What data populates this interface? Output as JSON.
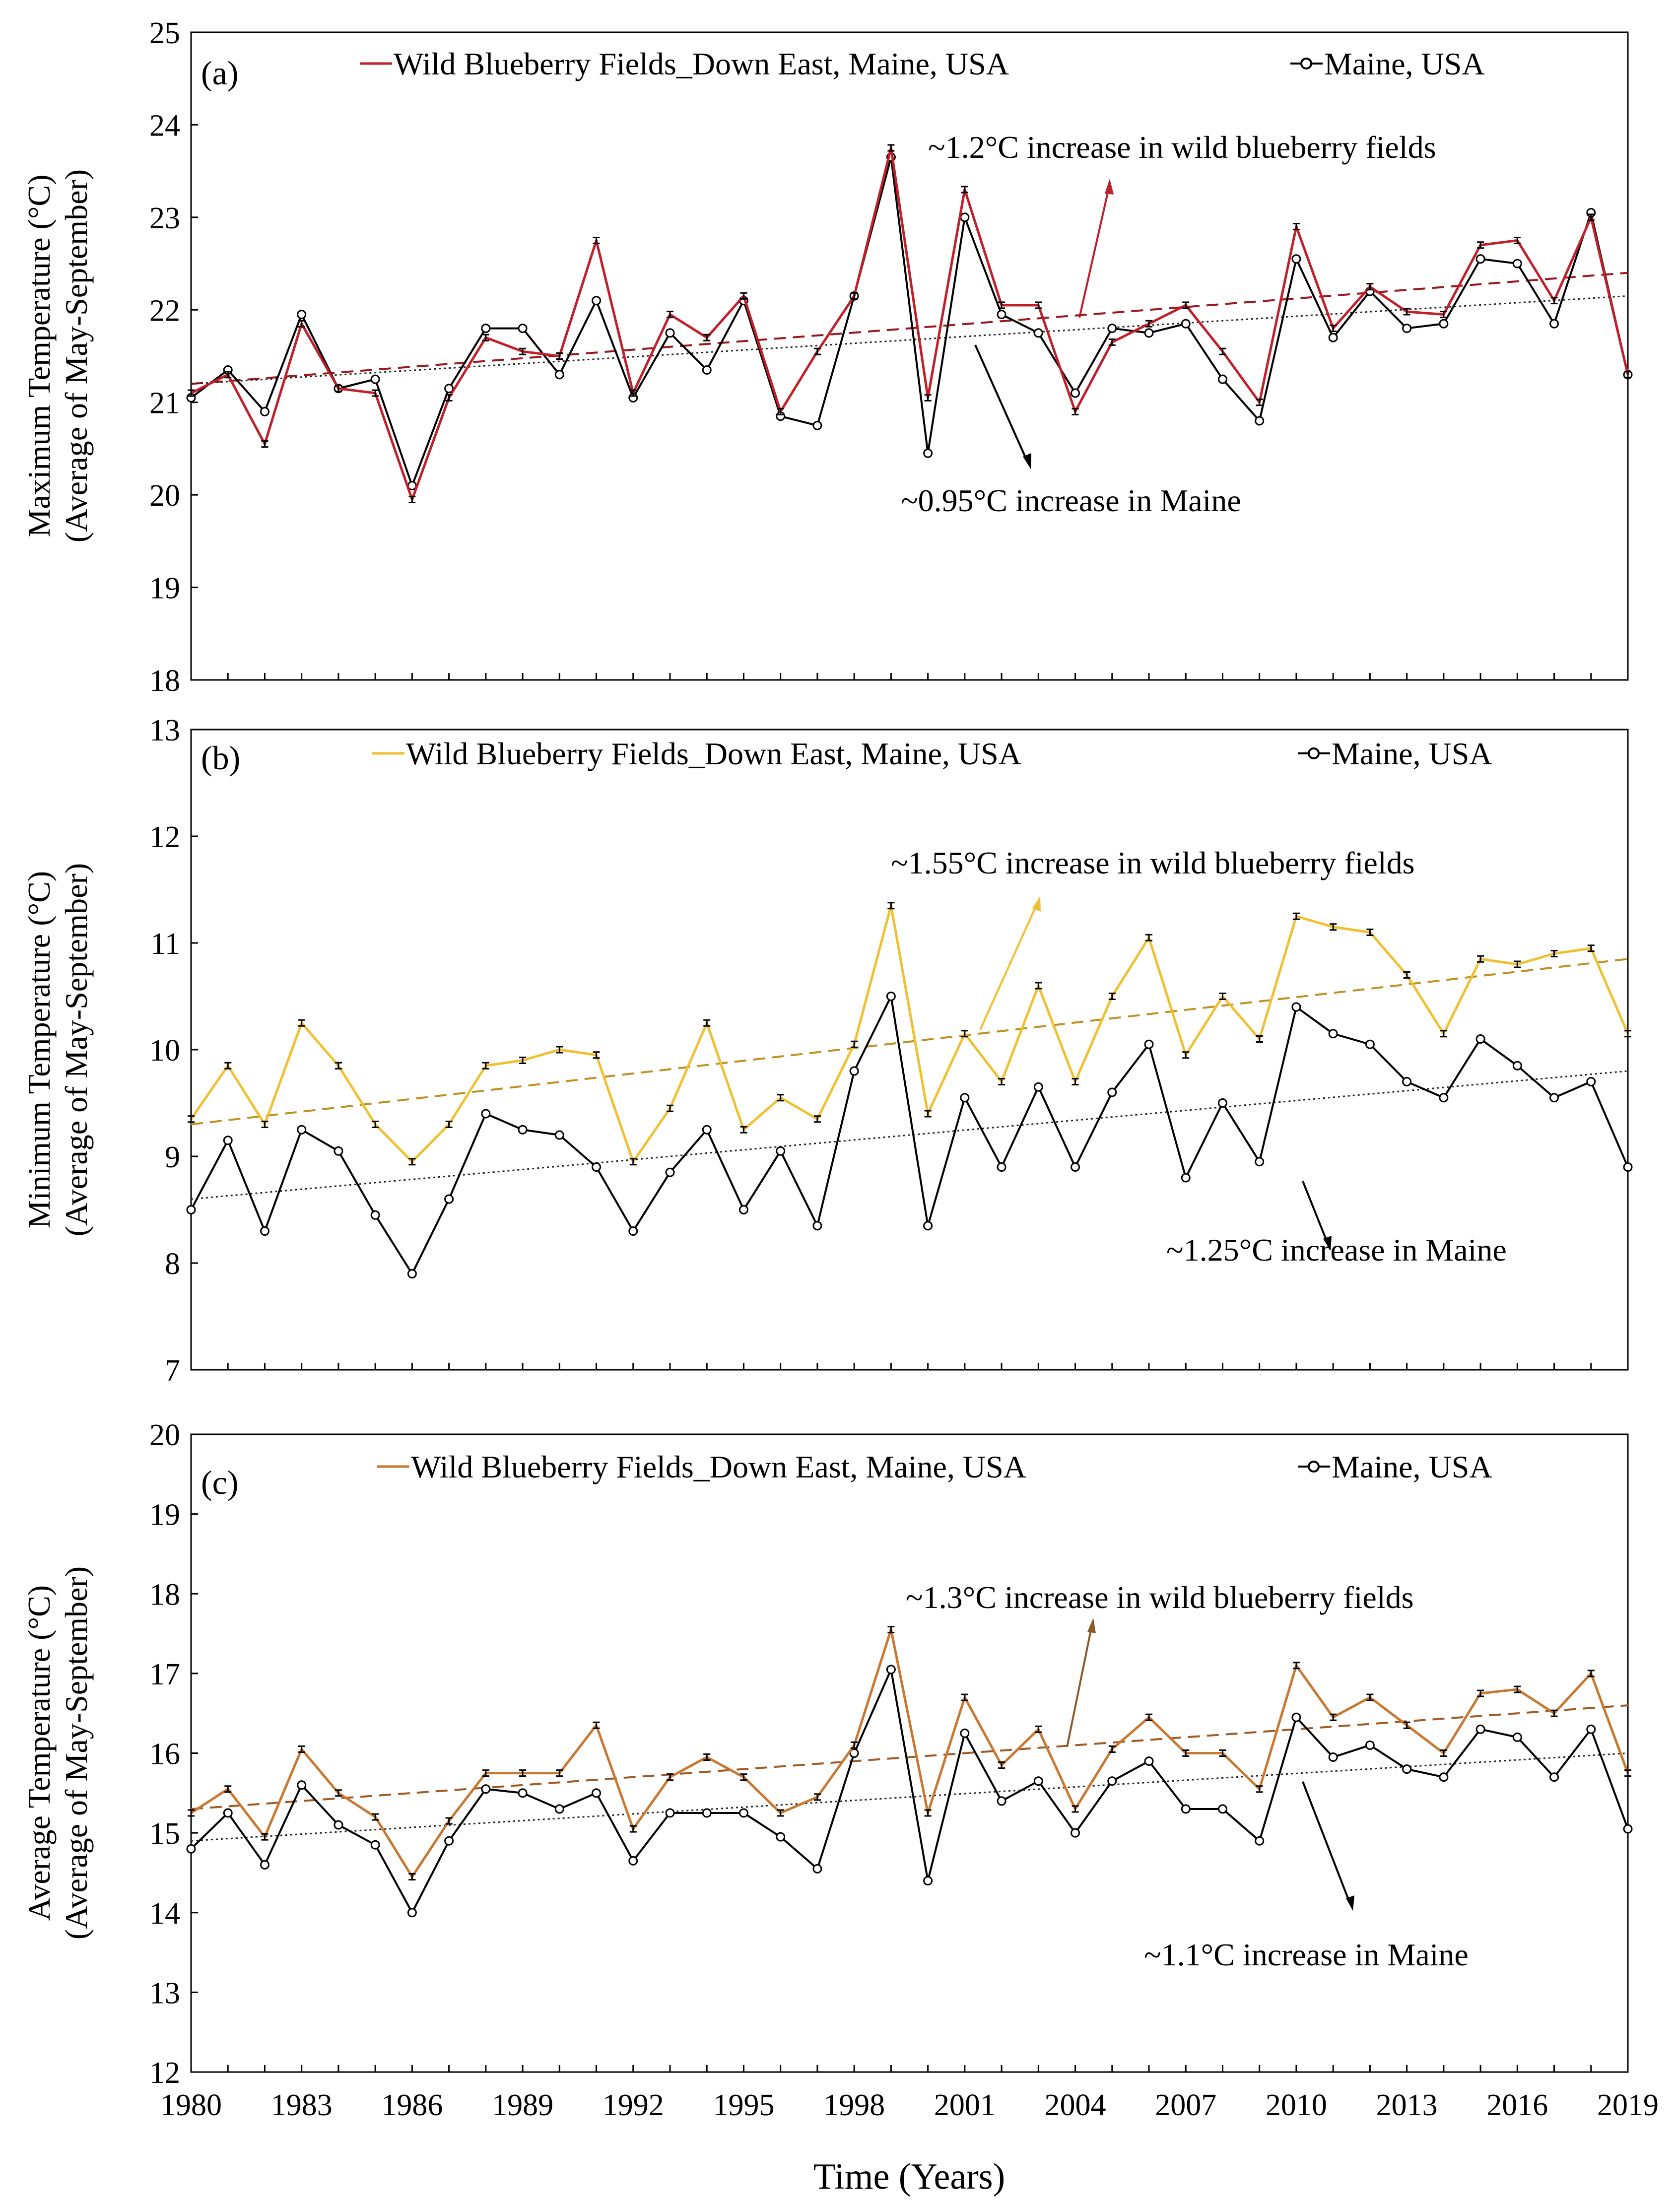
{
  "figure": {
    "xlabel": "Time (Years)",
    "x_ticks": [
      "1980",
      "1983",
      "1986",
      "1989",
      "1992",
      "1995",
      "1998",
      "2001",
      "2004",
      "2007",
      "2010",
      "2013",
      "2016",
      "2019"
    ]
  },
  "chart_data": [
    {
      "type": "line",
      "panel": "(a)",
      "ylabel_line1": "Maximum Temperature (°C)",
      "ylabel_line2": "(Average of  May-September)",
      "ylim": [
        18,
        25
      ],
      "yticks": [
        "18",
        "19",
        "20",
        "21",
        "22",
        "23",
        "24",
        "25"
      ],
      "x": [
        1980,
        1981,
        1982,
        1983,
        1984,
        1985,
        1986,
        1987,
        1988,
        1989,
        1990,
        1991,
        1992,
        1993,
        1994,
        1995,
        1996,
        1997,
        1998,
        1999,
        2000,
        2001,
        2002,
        2003,
        2004,
        2005,
        2006,
        2007,
        2008,
        2009,
        2010,
        2011,
        2012,
        2013,
        2014,
        2015,
        2016,
        2017,
        2018,
        2019
      ],
      "series": [
        {
          "name": "Wild Blueberry Fields_Down East, Maine, USA",
          "color": "#C0202A",
          "error_bars": true,
          "values": [
            21.1,
            21.3,
            20.55,
            21.85,
            21.15,
            21.1,
            19.95,
            21.05,
            21.7,
            21.55,
            21.5,
            22.75,
            21.1,
            21.95,
            21.7,
            22.15,
            20.9,
            21.55,
            22.15,
            23.75,
            21.05,
            23.3,
            22.05,
            22.05,
            20.9,
            21.65,
            21.85,
            22.05,
            21.55,
            21.0,
            22.9,
            21.8,
            22.25,
            21.98,
            21.95,
            22.7,
            22.75,
            22.1,
            23.0,
            21.3
          ]
        },
        {
          "name": "Maine, USA",
          "color": "#000000",
          "error_bars": false,
          "values": [
            21.05,
            21.35,
            20.9,
            21.95,
            21.15,
            21.25,
            20.1,
            21.15,
            21.8,
            21.8,
            21.3,
            22.1,
            21.05,
            21.75,
            21.35,
            22.1,
            20.85,
            20.75,
            22.15,
            23.65,
            20.45,
            23.0,
            21.95,
            21.75,
            21.1,
            21.8,
            21.75,
            21.85,
            21.25,
            20.8,
            22.55,
            21.7,
            22.2,
            21.8,
            21.85,
            22.55,
            22.5,
            21.85,
            23.05,
            21.3
          ]
        }
      ],
      "trends": [
        {
          "series": "Wild Blueberry Fields_Down East, Maine, USA",
          "start": 21.2,
          "end": 22.4,
          "style": "dashed"
        },
        {
          "series": "Maine, USA",
          "start": 21.2,
          "end": 22.15,
          "style": "dotted"
        }
      ],
      "annotations": [
        "~1.2°C increase in wild blueberry fields",
        "~0.95°C increase in Maine"
      ]
    },
    {
      "type": "line",
      "panel": "(b)",
      "ylabel_line1": "Minimum Temperature (°C)",
      "ylabel_line2": "(Average of May-September)",
      "ylim": [
        7,
        13
      ],
      "yticks": [
        "7",
        "8",
        "9",
        "10",
        "11",
        "12",
        "13"
      ],
      "x": [
        1980,
        1981,
        1982,
        1983,
        1984,
        1985,
        1986,
        1987,
        1988,
        1989,
        1990,
        1991,
        1992,
        1993,
        1994,
        1995,
        1996,
        1997,
        1998,
        1999,
        2000,
        2001,
        2002,
        2003,
        2004,
        2005,
        2006,
        2007,
        2008,
        2009,
        2010,
        2011,
        2012,
        2013,
        2014,
        2015,
        2016,
        2017,
        2018,
        2019
      ],
      "series": [
        {
          "name": "Wild Blueberry Fields_Down East, Maine, USA",
          "color": "#F0C030",
          "error_bars": true,
          "values": [
            9.35,
            9.85,
            9.3,
            10.25,
            9.85,
            9.3,
            8.95,
            9.3,
            9.85,
            9.9,
            10.0,
            9.95,
            8.95,
            9.45,
            10.25,
            9.25,
            9.55,
            9.35,
            10.05,
            11.35,
            9.4,
            10.15,
            9.7,
            10.6,
            9.7,
            10.5,
            11.05,
            9.95,
            10.5,
            10.1,
            11.25,
            11.15,
            11.1,
            10.7,
            10.15,
            10.85,
            10.8,
            10.9,
            10.95,
            10.15
          ]
        },
        {
          "name": "Maine, USA",
          "color": "#000000",
          "error_bars": false,
          "values": [
            8.5,
            9.15,
            8.3,
            9.25,
            9.05,
            8.45,
            7.9,
            8.6,
            9.4,
            9.25,
            9.2,
            8.9,
            8.3,
            8.85,
            9.25,
            8.5,
            9.05,
            8.35,
            9.8,
            10.5,
            8.35,
            9.55,
            8.9,
            9.65,
            8.9,
            9.6,
            10.05,
            8.8,
            9.5,
            8.95,
            10.4,
            10.15,
            10.05,
            9.7,
            9.55,
            10.1,
            9.85,
            9.55,
            9.7,
            8.9
          ]
        }
      ],
      "trends": [
        {
          "series": "Wild Blueberry Fields_Down East, Maine, USA",
          "start": 9.3,
          "end": 10.85,
          "style": "dashed"
        },
        {
          "series": "Maine, USA",
          "start": 8.6,
          "end": 9.8,
          "style": "dotted"
        }
      ],
      "annotations": [
        "~1.55°C increase in wild blueberry fields",
        "~1.25°C increase in Maine"
      ]
    },
    {
      "type": "line",
      "panel": "(c)",
      "ylabel_line1": "Average Temperature (°C)",
      "ylabel_line2": "(Average of  May-September)",
      "ylim": [
        12,
        20
      ],
      "yticks": [
        "12",
        "13",
        "14",
        "15",
        "16",
        "17",
        "18",
        "19",
        "20"
      ],
      "x": [
        1980,
        1981,
        1982,
        1983,
        1984,
        1985,
        1986,
        1987,
        1988,
        1989,
        1990,
        1991,
        1992,
        1993,
        1994,
        1995,
        1996,
        1997,
        1998,
        1999,
        2000,
        2001,
        2002,
        2003,
        2004,
        2005,
        2006,
        2007,
        2008,
        2009,
        2010,
        2011,
        2012,
        2013,
        2014,
        2015,
        2016,
        2017,
        2018,
        2019
      ],
      "series": [
        {
          "name": "Wild Blueberry Fields_Down East, Maine, USA",
          "color": "#C87830",
          "error_bars": true,
          "values": [
            15.25,
            15.55,
            14.95,
            16.05,
            15.5,
            15.2,
            14.45,
            15.15,
            15.75,
            15.75,
            15.75,
            16.35,
            15.05,
            15.7,
            15.95,
            15.7,
            15.25,
            15.45,
            16.1,
            17.55,
            15.25,
            16.7,
            15.85,
            16.3,
            15.3,
            16.05,
            16.45,
            16.0,
            16.0,
            15.55,
            17.1,
            16.45,
            16.7,
            16.35,
            16.0,
            16.75,
            16.8,
            16.5,
            17.0,
            15.75
          ]
        },
        {
          "name": "Maine, USA",
          "color": "#000000",
          "error_bars": false,
          "values": [
            14.8,
            15.25,
            14.6,
            15.6,
            15.1,
            14.85,
            14.0,
            14.9,
            15.55,
            15.5,
            15.3,
            15.5,
            14.65,
            15.25,
            15.25,
            15.25,
            14.95,
            14.55,
            16.0,
            17.05,
            14.4,
            16.25,
            15.4,
            15.65,
            15.0,
            15.65,
            15.9,
            15.3,
            15.3,
            14.9,
            16.45,
            15.95,
            16.1,
            15.8,
            15.7,
            16.3,
            16.2,
            15.7,
            16.3,
            15.05
          ]
        }
      ],
      "trends": [
        {
          "series": "Wild Blueberry Fields_Down East, Maine, USA",
          "start": 15.3,
          "end": 16.6,
          "style": "dashed"
        },
        {
          "series": "Maine, USA",
          "start": 14.9,
          "end": 16.0,
          "style": "dotted"
        }
      ],
      "annotations": [
        "~1.3°C increase in wild blueberry fields",
        "~1.1°C increase in Maine"
      ]
    }
  ]
}
